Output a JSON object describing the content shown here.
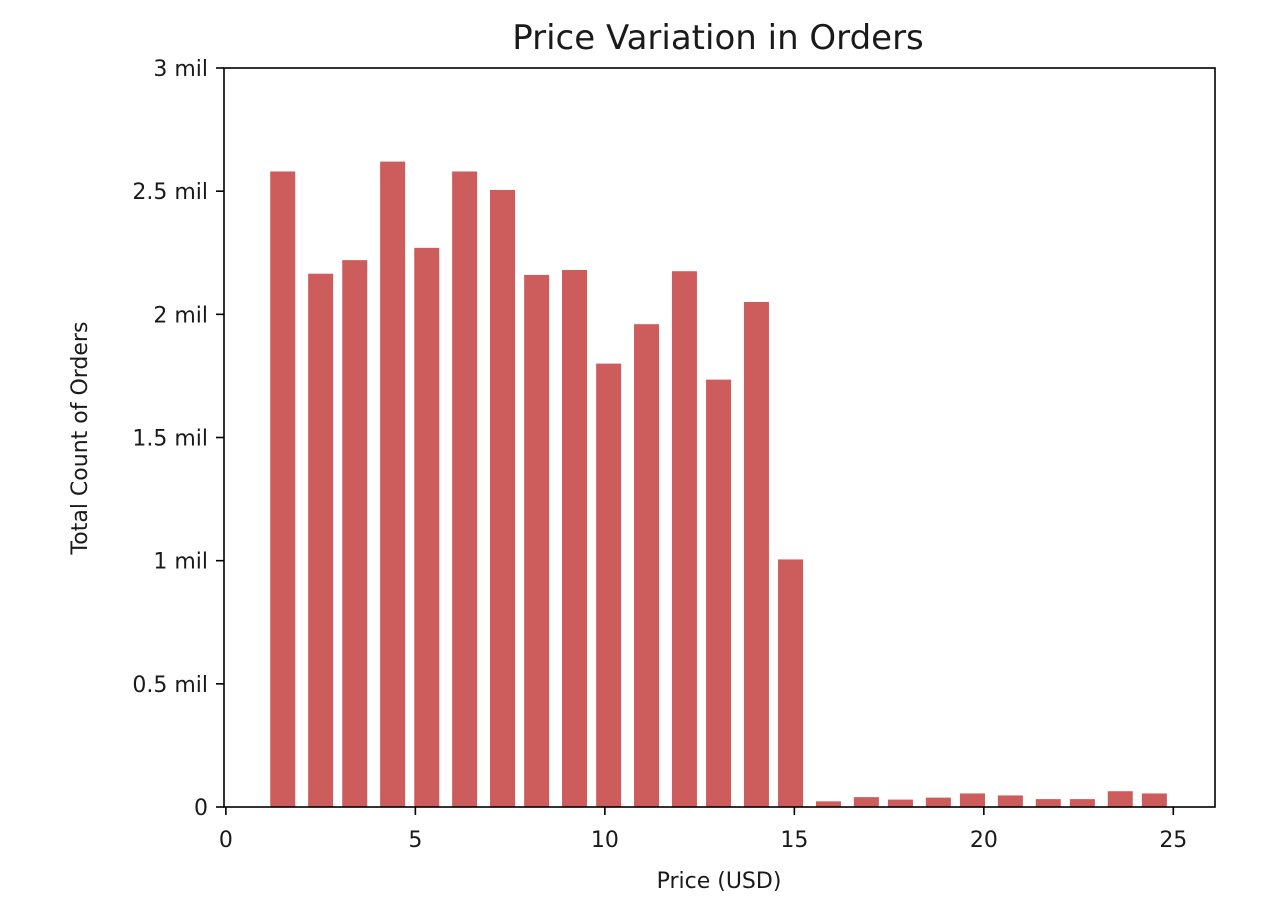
{
  "chart_data": {
    "type": "bar",
    "title": "Price Variation in Orders",
    "xlabel": "Price (USD)",
    "ylabel": "Total Count of Orders",
    "x": [
      1.5,
      2.5,
      3.4,
      4.4,
      5.3,
      6.3,
      7.3,
      8.2,
      9.2,
      10.1,
      11.1,
      12.1,
      13.0,
      14.0,
      14.9,
      15.9,
      16.9,
      17.8,
      18.8,
      19.7,
      20.7,
      21.7,
      22.6,
      23.6,
      24.5
    ],
    "values": [
      2580000,
      2165000,
      2220000,
      2620000,
      2270000,
      2580000,
      2505000,
      2160000,
      2180000,
      1800000,
      1960000,
      2175000,
      1735000,
      2050000,
      1005000,
      23000,
      40000,
      30000,
      38000,
      55000,
      47000,
      32000,
      32000,
      64000,
      55000
    ],
    "bar_width": 0.66,
    "xlim": [
      -0.05,
      26.1
    ],
    "ylim": [
      0,
      3000000
    ],
    "xticks": [
      {
        "value": 0,
        "label": "0"
      },
      {
        "value": 5,
        "label": "5"
      },
      {
        "value": 10,
        "label": "10"
      },
      {
        "value": 15,
        "label": "15"
      },
      {
        "value": 20,
        "label": "20"
      },
      {
        "value": 25,
        "label": "25"
      }
    ],
    "yticks": [
      {
        "value": 0,
        "label": "0"
      },
      {
        "value": 500000,
        "label": "0.5 mil"
      },
      {
        "value": 1000000,
        "label": "1 mil"
      },
      {
        "value": 1500000,
        "label": "1.5 mil"
      },
      {
        "value": 2000000,
        "label": "2 mil"
      },
      {
        "value": 2500000,
        "label": "2.5 mil"
      },
      {
        "value": 3000000,
        "label": "3 mil"
      }
    ],
    "grid": false,
    "bar_color": "#cd5c5c"
  }
}
